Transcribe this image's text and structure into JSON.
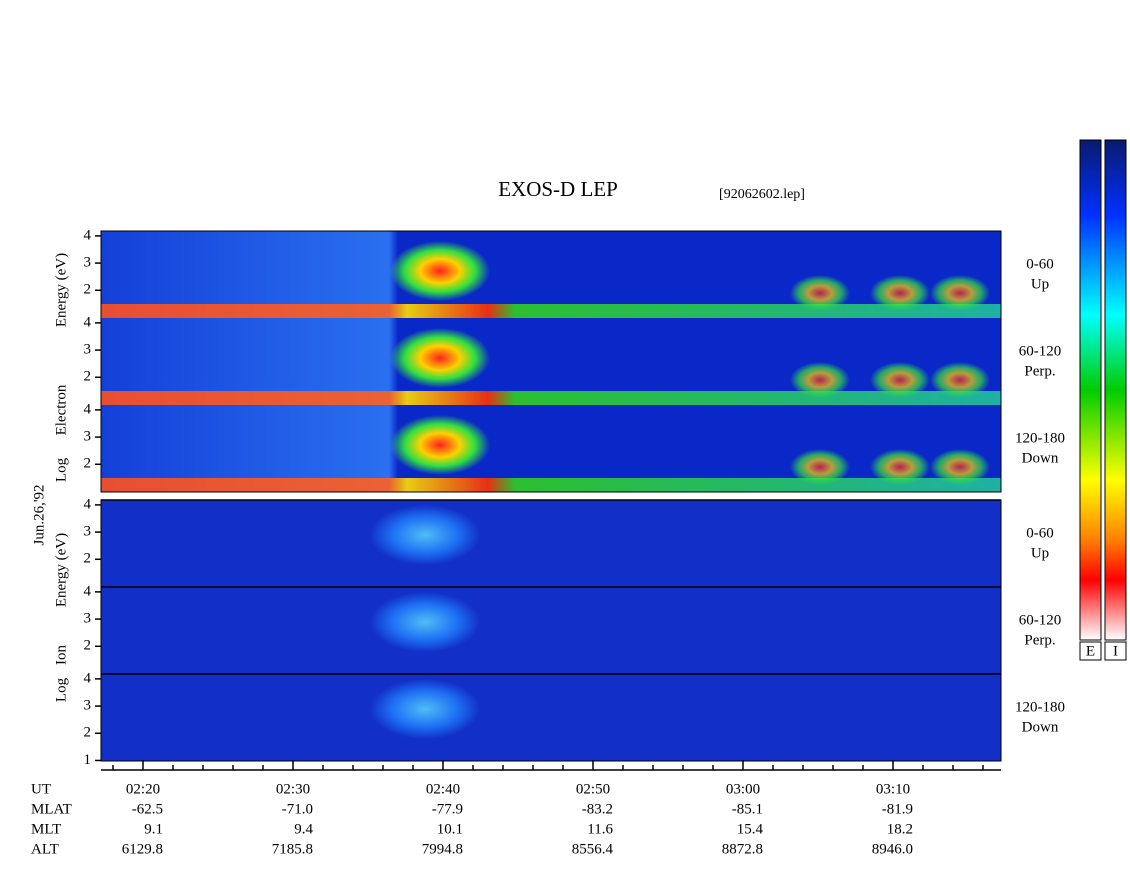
{
  "chart_data": {
    "type": "spectrogram",
    "title": "EXOS-D LEP",
    "file": "[92062602.lep]",
    "date": "Jun.26,'92",
    "groups": [
      {
        "y_label": [
          "Log",
          "Electron",
          "Energy (eV)"
        ],
        "panels": [
          {
            "angle": "0-60",
            "direction": "Up",
            "yticks": [
              2,
              3,
              4
            ]
          },
          {
            "angle": "60-120",
            "direction": "Perp.",
            "yticks": [
              2,
              3,
              4
            ]
          },
          {
            "angle": "120-180",
            "direction": "Down",
            "yticks": [
              2,
              3,
              4
            ]
          }
        ]
      },
      {
        "y_label": [
          "Log",
          "Ion",
          "Energy (eV)"
        ],
        "panels": [
          {
            "angle": "0-60",
            "direction": "Up",
            "yticks": [
              2,
              3,
              4
            ]
          },
          {
            "angle": "60-120",
            "direction": "Perp.",
            "yticks": [
              2,
              3,
              4
            ]
          },
          {
            "angle": "120-180",
            "direction": "Down",
            "yticks": [
              1,
              2,
              3,
              4
            ]
          }
        ]
      }
    ],
    "ylim": [
      0.98,
      4.18
    ],
    "x_labels": [
      "02:20",
      "02:30",
      "02:40",
      "02:50",
      "03:00",
      "03:10"
    ],
    "ephemeris": {
      "labels": [
        "UT",
        "MLAT",
        "MLT",
        "ALT"
      ],
      "rows": [
        [
          "-62.5",
          "-71.0",
          "-77.9",
          "-83.2",
          "-85.1",
          "-81.9"
        ],
        [
          "9.1",
          "9.4",
          "10.1",
          "11.6",
          "15.4",
          "18.2"
        ],
        [
          "6129.8",
          "7185.8",
          "7994.8",
          "8556.4",
          "8872.8",
          "8946.0"
        ]
      ]
    },
    "colorbars": [
      "E",
      "I"
    ]
  }
}
